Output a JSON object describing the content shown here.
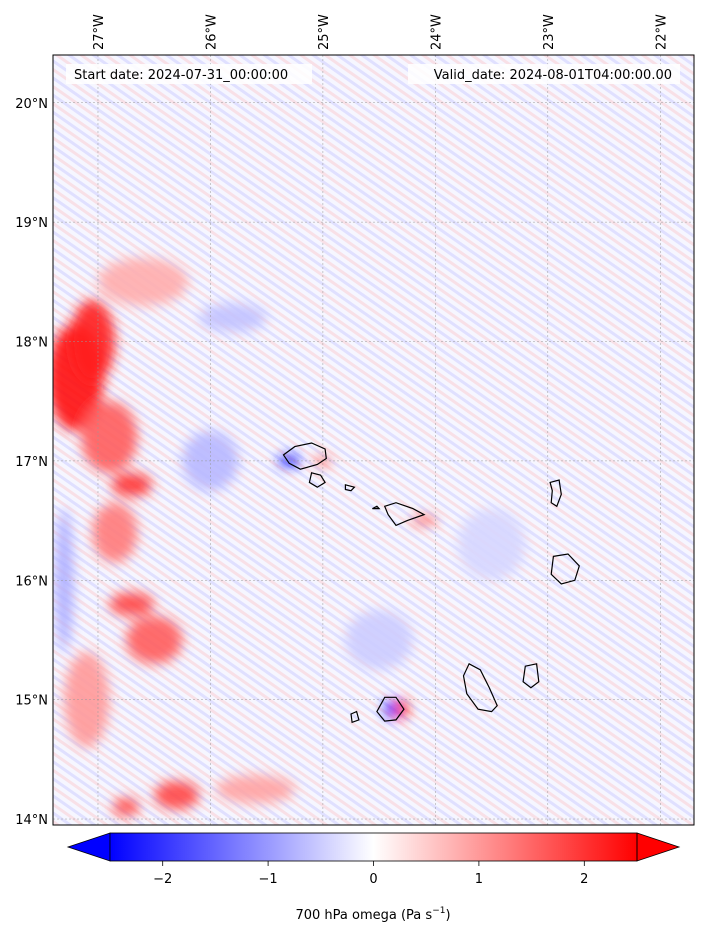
{
  "map": {
    "start_label": "Start date: 2024-07-31_00:00:00",
    "valid_label": "Valid_date: 2024-08-01T04:00:00.00",
    "lon_ticks": [
      "27°W",
      "26°W",
      "25°W",
      "24°W",
      "23°W",
      "22°W"
    ],
    "lat_ticks": [
      "20°N",
      "19°N",
      "18°N",
      "17°N",
      "16°N",
      "15°N",
      "14°N"
    ],
    "extent": {
      "lon_min": -27.4,
      "lon_max": -21.7,
      "lat_min": 13.95,
      "lat_max": 20.4
    },
    "variable": "700 hPa omega",
    "units": "Pa s",
    "units_exponent": "−1",
    "colormap": {
      "low": "#0000ff",
      "mid": "#ffffff",
      "high": "#ff0000"
    }
  },
  "colorbar": {
    "ticks": [
      "−2",
      "−1",
      "0",
      "1",
      "2"
    ],
    "tick_values": [
      -2,
      -1,
      0,
      1,
      2
    ],
    "range": [
      -2.5,
      2.5
    ]
  },
  "islands": [
    {
      "name": "",
      "points": [
        [
          -25.35,
          17.05
        ],
        [
          -25.25,
          17.12
        ],
        [
          -25.1,
          17.15
        ],
        [
          -24.98,
          17.1
        ],
        [
          -24.97,
          17.02
        ],
        [
          -25.05,
          16.97
        ],
        [
          -25.2,
          16.93
        ],
        [
          -25.3,
          16.98
        ]
      ]
    },
    {
      "name": "",
      "points": [
        [
          -25.1,
          16.9
        ],
        [
          -25.02,
          16.88
        ],
        [
          -24.98,
          16.82
        ],
        [
          -25.05,
          16.78
        ],
        [
          -25.12,
          16.82
        ]
      ]
    },
    {
      "name": "",
      "points": [
        [
          -24.8,
          16.8
        ],
        [
          -24.72,
          16.78
        ],
        [
          -24.75,
          16.75
        ],
        [
          -24.8,
          16.76
        ]
      ]
    },
    {
      "name": "",
      "points": [
        [
          -24.56,
          16.6
        ],
        [
          -24.52,
          16.62
        ],
        [
          -24.5,
          16.6
        ]
      ]
    },
    {
      "name": "",
      "points": [
        [
          -24.45,
          16.62
        ],
        [
          -24.35,
          16.65
        ],
        [
          -24.2,
          16.6
        ],
        [
          -24.1,
          16.55
        ],
        [
          -24.25,
          16.5
        ],
        [
          -24.35,
          16.46
        ],
        [
          -24.42,
          16.55
        ]
      ]
    },
    {
      "name": "",
      "points": [
        [
          -22.98,
          16.82
        ],
        [
          -22.9,
          16.84
        ],
        [
          -22.88,
          16.72
        ],
        [
          -22.92,
          16.62
        ],
        [
          -22.97,
          16.65
        ],
        [
          -22.96,
          16.75
        ]
      ]
    },
    {
      "name": "",
      "points": [
        [
          -22.95,
          16.2
        ],
        [
          -22.82,
          16.22
        ],
        [
          -22.72,
          16.12
        ],
        [
          -22.76,
          16.0
        ],
        [
          -22.88,
          15.97
        ],
        [
          -22.97,
          16.05
        ]
      ]
    },
    {
      "name": "",
      "points": [
        [
          -23.7,
          15.3
        ],
        [
          -23.6,
          15.25
        ],
        [
          -23.52,
          15.1
        ],
        [
          -23.45,
          14.95
        ],
        [
          -23.5,
          14.9
        ],
        [
          -23.62,
          14.92
        ],
        [
          -23.72,
          15.05
        ],
        [
          -23.75,
          15.2
        ]
      ]
    },
    {
      "name": "",
      "points": [
        [
          -23.2,
          15.28
        ],
        [
          -23.1,
          15.3
        ],
        [
          -23.08,
          15.15
        ],
        [
          -23.15,
          15.1
        ],
        [
          -23.22,
          15.15
        ]
      ]
    },
    {
      "name": "",
      "points": [
        [
          -24.45,
          15.02
        ],
        [
          -24.35,
          15.02
        ],
        [
          -24.28,
          14.92
        ],
        [
          -24.35,
          14.83
        ],
        [
          -24.45,
          14.82
        ],
        [
          -24.52,
          14.9
        ]
      ]
    },
    {
      "name": "",
      "points": [
        [
          -24.75,
          14.88
        ],
        [
          -24.7,
          14.9
        ],
        [
          -24.68,
          14.83
        ],
        [
          -24.74,
          14.81
        ]
      ]
    }
  ],
  "omega_blobs": [
    {
      "lon": -27.2,
      "lat": 17.7,
      "value": 2.4,
      "rx": 0.25,
      "ry": 0.45
    },
    {
      "lon": -27.05,
      "lat": 18.0,
      "value": 2.2,
      "rx": 0.2,
      "ry": 0.35
    },
    {
      "lon": -26.9,
      "lat": 17.2,
      "value": 1.6,
      "rx": 0.25,
      "ry": 0.3
    },
    {
      "lon": -26.7,
      "lat": 16.8,
      "value": 2.0,
      "rx": 0.18,
      "ry": 0.1
    },
    {
      "lon": -26.85,
      "lat": 16.4,
      "value": 1.3,
      "rx": 0.2,
      "ry": 0.25
    },
    {
      "lon": -26.7,
      "lat": 15.8,
      "value": 1.8,
      "rx": 0.2,
      "ry": 0.1
    },
    {
      "lon": -26.5,
      "lat": 15.5,
      "value": 1.6,
      "rx": 0.25,
      "ry": 0.2
    },
    {
      "lon": -26.3,
      "lat": 14.2,
      "value": 1.8,
      "rx": 0.2,
      "ry": 0.12
    },
    {
      "lon": -26.75,
      "lat": 14.1,
      "value": 1.7,
      "rx": 0.12,
      "ry": 0.08
    },
    {
      "lon": -25.6,
      "lat": 14.25,
      "value": 0.9,
      "rx": 0.35,
      "ry": 0.12
    },
    {
      "lon": -26.6,
      "lat": 18.5,
      "value": 0.8,
      "rx": 0.4,
      "ry": 0.2
    },
    {
      "lon": -27.1,
      "lat": 15.0,
      "value": 1.0,
      "rx": 0.2,
      "ry": 0.4
    },
    {
      "lon": -26.0,
      "lat": 17.0,
      "value": -0.7,
      "rx": 0.25,
      "ry": 0.25
    },
    {
      "lon": -25.3,
      "lat": 17.0,
      "value": -2.2,
      "rx": 0.1,
      "ry": 0.05
    },
    {
      "lon": -24.3,
      "lat": 14.92,
      "value": 2.3,
      "rx": 0.06,
      "ry": 0.08
    },
    {
      "lon": -24.4,
      "lat": 14.92,
      "value": -2.3,
      "rx": 0.05,
      "ry": 0.08
    },
    {
      "lon": -24.1,
      "lat": 16.5,
      "value": 1.5,
      "rx": 0.12,
      "ry": 0.04
    },
    {
      "lon": -25.0,
      "lat": 17.0,
      "value": 1.2,
      "rx": 0.08,
      "ry": 0.05
    },
    {
      "lon": -27.3,
      "lat": 16.0,
      "value": -0.8,
      "rx": 0.08,
      "ry": 0.6
    },
    {
      "lon": -25.8,
      "lat": 18.2,
      "value": -0.6,
      "rx": 0.3,
      "ry": 0.12
    },
    {
      "lon": -24.5,
      "lat": 15.5,
      "value": -0.5,
      "rx": 0.3,
      "ry": 0.25
    },
    {
      "lon": -23.5,
      "lat": 16.3,
      "value": -0.4,
      "rx": 0.3,
      "ry": 0.3
    }
  ]
}
